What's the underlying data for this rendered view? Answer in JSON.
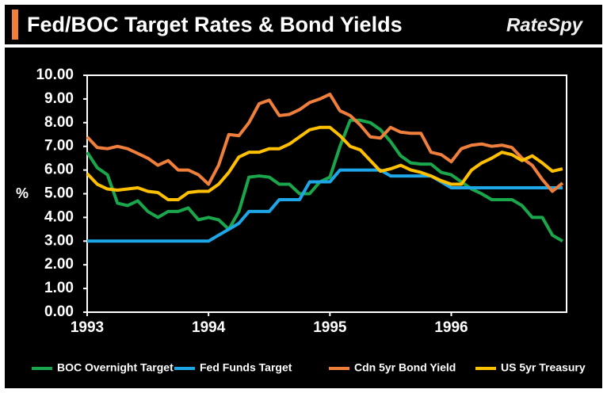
{
  "logo": "RateSpy",
  "chart_data": {
    "type": "line",
    "title": "Fed/BOC Target Rates & Bond Yields",
    "ylabel": "%",
    "x": [
      1993,
      1993.083,
      1993.167,
      1993.25,
      1993.333,
      1993.417,
      1993.5,
      1993.583,
      1993.667,
      1993.75,
      1993.833,
      1993.917,
      1994,
      1994.083,
      1994.167,
      1994.25,
      1994.333,
      1994.417,
      1994.5,
      1994.583,
      1994.667,
      1994.75,
      1994.833,
      1994.917,
      1995,
      1995.083,
      1995.167,
      1995.25,
      1995.333,
      1995.417,
      1995.5,
      1995.583,
      1995.667,
      1995.75,
      1995.833,
      1995.917,
      1996,
      1996.083,
      1996.167,
      1996.25,
      1996.333,
      1996.417,
      1996.5,
      1996.583,
      1996.667,
      1996.75,
      1996.833,
      1996.917
    ],
    "series": [
      {
        "name": "BOC Overnight Target",
        "color": "#1aa64a",
        "values": [
          6.75,
          6.1,
          5.8,
          4.6,
          4.5,
          4.7,
          4.25,
          4.0,
          4.25,
          4.25,
          4.4,
          3.9,
          4.0,
          3.9,
          3.5,
          4.25,
          5.7,
          5.75,
          5.7,
          5.4,
          5.4,
          5.0,
          5.0,
          5.5,
          5.7,
          7.0,
          8.1,
          8.1,
          8.0,
          7.7,
          7.2,
          6.6,
          6.3,
          6.25,
          6.25,
          5.9,
          5.8,
          5.5,
          5.2,
          5.0,
          4.75,
          4.75,
          4.75,
          4.5,
          4.0,
          4.0,
          3.25,
          3.0
        ]
      },
      {
        "name": "Fed Funds Target",
        "color": "#1ea7e8",
        "values": [
          3.0,
          3.0,
          3.0,
          3.0,
          3.0,
          3.0,
          3.0,
          3.0,
          3.0,
          3.0,
          3.0,
          3.0,
          3.0,
          3.25,
          3.5,
          3.75,
          4.25,
          4.25,
          4.25,
          4.75,
          4.75,
          4.75,
          5.5,
          5.5,
          5.5,
          6.0,
          6.0,
          6.0,
          6.0,
          6.0,
          5.75,
          5.75,
          5.75,
          5.75,
          5.75,
          5.5,
          5.25,
          5.25,
          5.25,
          5.25,
          5.25,
          5.25,
          5.25,
          5.25,
          5.25,
          5.25,
          5.25,
          5.25
        ]
      },
      {
        "name": "Cdn 5yr Bond Yield",
        "color": "#f07f3c",
        "values": [
          7.4,
          6.95,
          6.9,
          7.0,
          6.9,
          6.7,
          6.5,
          6.2,
          6.4,
          6.0,
          6.0,
          5.8,
          5.4,
          6.2,
          7.5,
          7.45,
          8.0,
          8.8,
          8.95,
          8.3,
          8.35,
          8.55,
          8.85,
          9.0,
          9.2,
          8.5,
          8.3,
          7.9,
          7.4,
          7.35,
          7.8,
          7.6,
          7.55,
          7.55,
          6.75,
          6.65,
          6.35,
          6.9,
          7.05,
          7.1,
          7.0,
          7.05,
          6.95,
          6.5,
          6.2,
          5.6,
          5.1,
          5.45
        ]
      },
      {
        "name": "US 5yr Treasury",
        "color": "#ffc000",
        "values": [
          5.85,
          5.4,
          5.2,
          5.15,
          5.2,
          5.25,
          5.1,
          5.05,
          4.75,
          4.75,
          5.05,
          5.1,
          5.1,
          5.4,
          5.9,
          6.55,
          6.75,
          6.75,
          6.9,
          6.9,
          7.1,
          7.4,
          7.7,
          7.8,
          7.8,
          7.45,
          7.0,
          6.85,
          6.4,
          5.95,
          6.05,
          6.2,
          6.0,
          5.9,
          5.75,
          5.55,
          5.4,
          5.4,
          6.0,
          6.3,
          6.5,
          6.75,
          6.65,
          6.4,
          6.6,
          6.3,
          5.95,
          6.05
        ]
      }
    ],
    "xlim": [
      1993,
      1996.95
    ],
    "xticks": [
      1993,
      1994,
      1995,
      1996
    ],
    "ylim": [
      0,
      10
    ],
    "yticks": [
      {
        "value": 0,
        "label": "0.00"
      },
      {
        "value": 1,
        "label": "1.00"
      },
      {
        "value": 2,
        "label": "2.00"
      },
      {
        "value": 3,
        "label": "3.00"
      },
      {
        "value": 4,
        "label": "4.00"
      },
      {
        "value": 5,
        "label": "5.00"
      },
      {
        "value": 6,
        "label": "6.00"
      },
      {
        "value": 7,
        "label": "7.00"
      },
      {
        "value": 8,
        "label": "8.00"
      },
      {
        "value": 9,
        "label": "9.00"
      },
      {
        "value": 10,
        "label": "10.00"
      }
    ],
    "legend": "bottom"
  }
}
